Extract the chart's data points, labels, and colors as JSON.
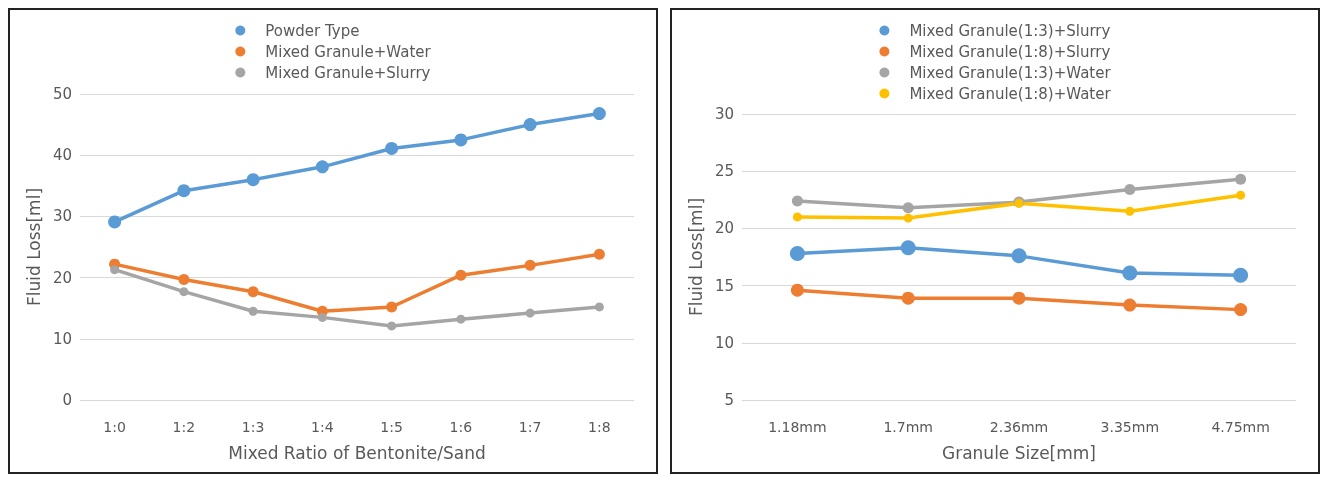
{
  "chart_data": [
    {
      "type": "line",
      "xlabel": "Mixed Ratio of Bentonite/Sand",
      "ylabel": "Fluid Loss[ml]",
      "categories": [
        "1:0",
        "1:2",
        "1:3",
        "1:4",
        "1:5",
        "1:6",
        "1:7",
        "1:8"
      ],
      "series": [
        {
          "name": "Powder Type",
          "color": "#5b9bd5",
          "values": [
            29.1,
            34.2,
            36.0,
            38.1,
            41.1,
            42.5,
            45.0,
            46.8
          ]
        },
        {
          "name": "Mixed Granule+Water",
          "color": "#ed7d31",
          "values": [
            22.2,
            19.7,
            17.7,
            14.5,
            15.2,
            20.4,
            22.0,
            23.8
          ]
        },
        {
          "name": "Mixed Granule+Slurry",
          "color": "#a5a5a5",
          "values": [
            21.3,
            17.7,
            14.5,
            13.5,
            12.1,
            13.2,
            14.2,
            15.2
          ]
        }
      ],
      "ylim": [
        0,
        50
      ],
      "yticks": [
        0,
        10,
        20,
        30,
        40,
        50
      ],
      "grid": "y",
      "legend": "top",
      "marker": "circle",
      "line_style": "solid"
    },
    {
      "type": "line",
      "xlabel": "Granule Size[mm]",
      "ylabel": "Fluid Loss[ml]",
      "categories": [
        "1.18mm",
        "1.7mm",
        "2.36mm",
        "3.35mm",
        "4.75mm"
      ],
      "series": [
        {
          "name": "Mixed Granule(1:3)+Slurry",
          "color": "#5b9bd5",
          "values": [
            17.8,
            18.3,
            17.6,
            16.1,
            15.9
          ]
        },
        {
          "name": "Mixed Granule(1:8)+Slurry",
          "color": "#ed7d31",
          "values": [
            14.6,
            13.9,
            13.9,
            13.3,
            12.9
          ]
        },
        {
          "name": "Mixed Granule(1:3)+Water",
          "color": "#a5a5a5",
          "values": [
            22.4,
            21.8,
            22.3,
            23.4,
            24.3
          ]
        },
        {
          "name": "Mixed Granule(1:8)+Water",
          "color": "#ffc000",
          "values": [
            21.0,
            20.9,
            22.2,
            21.5,
            22.9
          ]
        }
      ],
      "ylim": [
        5,
        30
      ],
      "yticks": [
        5,
        10,
        15,
        20,
        25,
        30
      ],
      "grid": "y",
      "legend": "top",
      "marker": "circle",
      "line_style": "solid"
    }
  ]
}
